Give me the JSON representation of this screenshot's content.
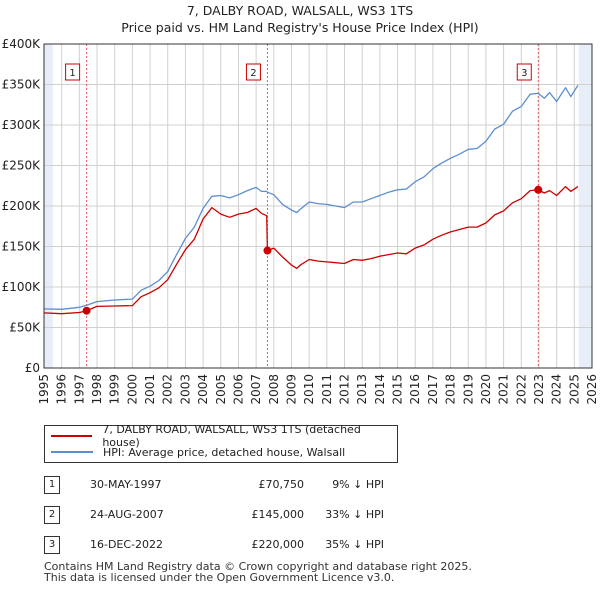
{
  "chart_data": {
    "type": "line",
    "title": "7, DALBY ROAD, WALSALL, WS3 1TS",
    "subtitle": "Price paid vs. HM Land Registry's House Price Index (HPI)",
    "xlim": [
      1995,
      2026
    ],
    "ylim": [
      0,
      400000
    ],
    "y_ticks": [
      0,
      50000,
      100000,
      150000,
      200000,
      250000,
      300000,
      350000,
      400000
    ],
    "y_tick_labels": [
      "£0",
      "£50K",
      "£100K",
      "£150K",
      "£200K",
      "£250K",
      "£300K",
      "£350K",
      "£400K"
    ],
    "x_ticks": [
      1995,
      1996,
      1997,
      1998,
      1999,
      2000,
      2001,
      2002,
      2003,
      2004,
      2005,
      2006,
      2007,
      2008,
      2009,
      2010,
      2011,
      2012,
      2013,
      2014,
      2015,
      2016,
      2017,
      2018,
      2019,
      2020,
      2021,
      2022,
      2023,
      2024,
      2025,
      2026
    ],
    "x_tick_labels": [
      "1995",
      "1996",
      "1997",
      "1998",
      "1999",
      "2000",
      "2001",
      "2002",
      "2003",
      "2004",
      "2005",
      "2006",
      "2007",
      "2008",
      "2009",
      "2010",
      "2011",
      "2012",
      "2013",
      "2014",
      "2015",
      "2016",
      "2017",
      "2018",
      "2019",
      "2020",
      "2021",
      "2022",
      "2023",
      "2024",
      "2025",
      "2026"
    ],
    "grid": true,
    "shaded_ranges": [
      [
        1995,
        1995.5
      ],
      [
        2025.25,
        2026
      ]
    ],
    "series": [
      {
        "name": "7, DALBY ROAD, WALSALL, WS3 1TS (detached house)",
        "color": "#cc0000",
        "x": [
          1995.0,
          1996.0,
          1997.0,
          1997.41,
          1998.0,
          1999.0,
          2000.0,
          2000.5,
          2001.0,
          2001.5,
          2002.0,
          2002.5,
          2003.0,
          2003.5,
          2004.0,
          2004.5,
          2005.0,
          2005.5,
          2006.0,
          2006.5,
          2007.0,
          2007.3,
          2007.6,
          2007.64,
          2008.0,
          2008.5,
          2009.0,
          2009.3,
          2009.5,
          2010.0,
          2010.5,
          2011.0,
          2011.5,
          2012.0,
          2012.5,
          2013.0,
          2013.5,
          2014.0,
          2014.5,
          2015.0,
          2015.5,
          2016.0,
          2016.5,
          2017.0,
          2017.5,
          2018.0,
          2018.5,
          2019.0,
          2019.5,
          2020.0,
          2020.5,
          2021.0,
          2021.5,
          2022.0,
          2022.5,
          2022.96,
          2023.3,
          2023.6,
          2024.0,
          2024.5,
          2024.8,
          2025.2
        ],
        "values": [
          68000,
          67000,
          68500,
          70750,
          76000,
          76500,
          77000,
          88000,
          93000,
          99000,
          109000,
          128000,
          146000,
          159000,
          184000,
          198000,
          190000,
          186000,
          190000,
          192000,
          197000,
          191000,
          188000,
          145000,
          148000,
          137000,
          127000,
          123000,
          127000,
          134000,
          132000,
          131000,
          130000,
          129000,
          134000,
          133000,
          135000,
          138000,
          140000,
          142000,
          141000,
          148000,
          152000,
          159000,
          164000,
          168000,
          171000,
          174000,
          174000,
          179000,
          189000,
          194000,
          204000,
          209000,
          219000,
          220000,
          216000,
          219000,
          213000,
          224000,
          218000,
          224000
        ]
      },
      {
        "name": "HPI: Average price, detached house, Walsall",
        "color": "#5b8fcf",
        "x": [
          1995.0,
          1996.0,
          1997.0,
          1997.41,
          1998.0,
          1999.0,
          2000.0,
          2000.5,
          2001.0,
          2001.5,
          2002.0,
          2002.5,
          2003.0,
          2003.5,
          2004.0,
          2004.5,
          2005.0,
          2005.5,
          2006.0,
          2006.5,
          2007.0,
          2007.3,
          2007.6,
          2007.64,
          2008.0,
          2008.5,
          2009.0,
          2009.3,
          2009.5,
          2010.0,
          2010.5,
          2011.0,
          2011.5,
          2012.0,
          2012.5,
          2013.0,
          2013.5,
          2014.0,
          2014.5,
          2015.0,
          2015.5,
          2016.0,
          2016.5,
          2017.0,
          2017.5,
          2018.0,
          2018.5,
          2019.0,
          2019.5,
          2020.0,
          2020.5,
          2021.0,
          2021.5,
          2022.0,
          2022.5,
          2022.96,
          2023.3,
          2023.6,
          2024.0,
          2024.5,
          2024.8,
          2025.2
        ],
        "values": [
          73000,
          72500,
          75000,
          77500,
          82000,
          84000,
          85000,
          96000,
          101000,
          108000,
          119000,
          140000,
          160000,
          174000,
          197000,
          212000,
          213000,
          210000,
          214000,
          219000,
          223000,
          218000,
          218000,
          217000,
          214000,
          202000,
          195000,
          192000,
          196000,
          205000,
          203000,
          202000,
          200000,
          198000,
          205000,
          205000,
          209000,
          213000,
          217000,
          220000,
          221000,
          230000,
          236000,
          246000,
          253000,
          259000,
          264000,
          270000,
          271000,
          280000,
          295000,
          301000,
          317000,
          323000,
          338000,
          339000,
          333000,
          340000,
          329000,
          346000,
          335000,
          349000
        ]
      }
    ],
    "sales": [
      {
        "label": "1",
        "date": "30-MAY-1997",
        "x": 1997.41,
        "price": 70750
      },
      {
        "label": "2",
        "date": "24-AUG-2007",
        "x": 2007.64,
        "price": 145000
      },
      {
        "label": "3",
        "date": "16-DEC-2022",
        "x": 2022.96,
        "price": 220000
      }
    ]
  },
  "legend": {
    "red_label": "7, DALBY ROAD, WALSALL, WS3 1TS (detached house)",
    "blue_label": "HPI: Average price, detached house, Walsall"
  },
  "sales_table": [
    {
      "num": "1",
      "date": "30-MAY-1997",
      "price": "£70,750",
      "hpi": "9% ↓ HPI"
    },
    {
      "num": "2",
      "date": "24-AUG-2007",
      "price": "£145,000",
      "hpi": "33% ↓ HPI"
    },
    {
      "num": "3",
      "date": "16-DEC-2022",
      "price": "£220,000",
      "hpi": "35% ↓ HPI"
    }
  ],
  "footer": {
    "line1": "Contains HM Land Registry data © Crown copyright and database right 2025.",
    "line2": "This data is licensed under the Open Government Licence v3.0."
  },
  "colors": {
    "property_line": "#cc0000",
    "hpi_line": "#5b8fcf",
    "shade": "#e8eef8",
    "grid": "#d0d0d0",
    "marker_line": "#e06060"
  }
}
